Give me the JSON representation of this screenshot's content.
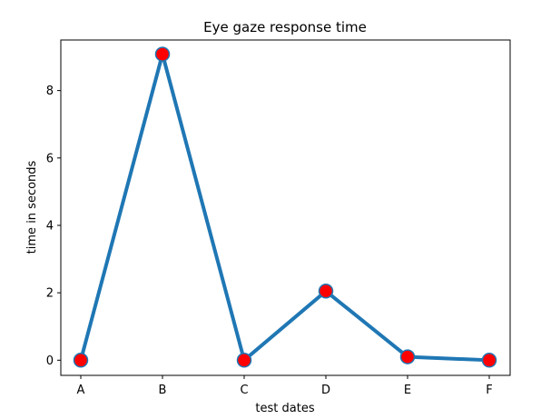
{
  "chart_data": {
    "type": "line",
    "title": "Eye gaze response time",
    "xlabel": "test dates",
    "ylabel": "time in seconds",
    "categories": [
      "A",
      "B",
      "C",
      "D",
      "E",
      "F"
    ],
    "series": [
      {
        "values": [
          0,
          9.08,
          0,
          2.05,
          0.1,
          0
        ]
      }
    ],
    "yticks": [
      0,
      2,
      4,
      6,
      8
    ],
    "ylim": [
      -0.45,
      9.5
    ],
    "grid": false,
    "line_color": "#1f77b4",
    "marker_color": "#ff0000",
    "marker_edge_color": "#1f77b4"
  }
}
